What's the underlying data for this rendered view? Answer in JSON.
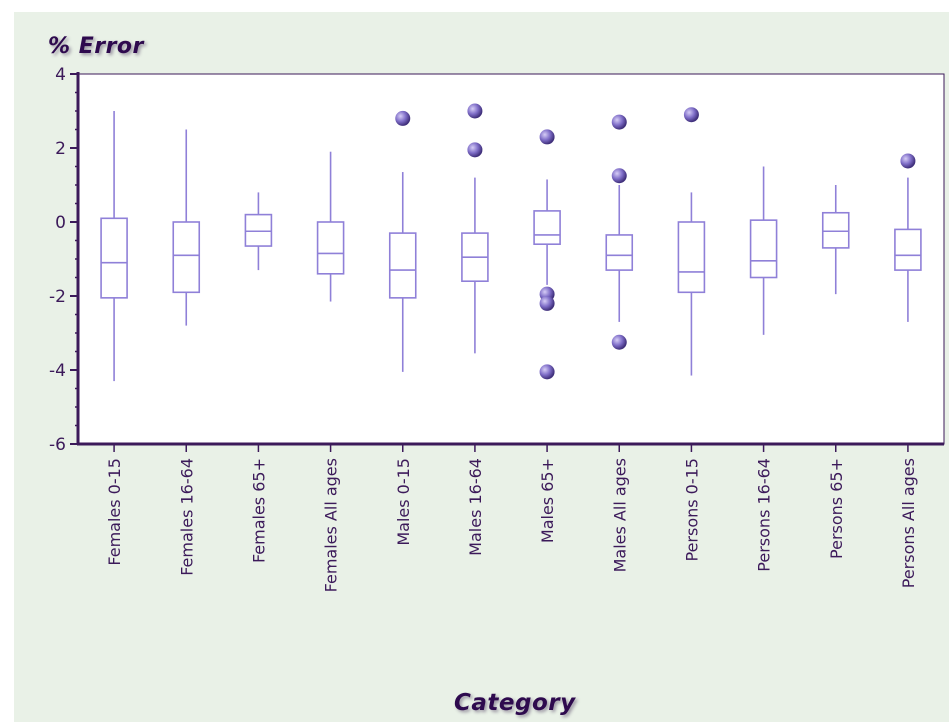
{
  "chart_data": {
    "type": "boxplot",
    "ylabel": "% Error",
    "xlabel": "Category",
    "ylim": [
      -6,
      4
    ],
    "yticks": [
      4,
      2,
      0,
      -2,
      -4,
      -6
    ],
    "categories": [
      "Females 0-15",
      "Females 16-64",
      "Females 65+",
      "Females All  ages",
      "Males 0-15",
      "Males 16-64",
      "Males 65+",
      "Males All  ages",
      "Persons 0-15",
      "Persons 16-64",
      "Persons 65+",
      "Persons All  ages"
    ],
    "boxes": [
      {
        "category": "Females 0-15",
        "whisker_low": -4.3,
        "q1": -2.05,
        "median": -1.1,
        "q3": 0.1,
        "whisker_high": 3.0,
        "outliers": []
      },
      {
        "category": "Females 16-64",
        "whisker_low": -2.8,
        "q1": -1.9,
        "median": -0.9,
        "q3": 0.0,
        "whisker_high": 2.5,
        "outliers": []
      },
      {
        "category": "Females 65+",
        "whisker_low": -1.3,
        "q1": -0.65,
        "median": -0.25,
        "q3": 0.2,
        "whisker_high": 0.8,
        "outliers": []
      },
      {
        "category": "Females All  ages",
        "whisker_low": -2.15,
        "q1": -1.4,
        "median": -0.85,
        "q3": 0.0,
        "whisker_high": 1.9,
        "outliers": []
      },
      {
        "category": "Males 0-15",
        "whisker_low": -4.05,
        "q1": -2.05,
        "median": -1.3,
        "q3": -0.3,
        "whisker_high": 1.35,
        "outliers": [
          2.8
        ]
      },
      {
        "category": "Males 16-64",
        "whisker_low": -3.55,
        "q1": -1.6,
        "median": -0.95,
        "q3": -0.3,
        "whisker_high": 1.2,
        "outliers": [
          3.0,
          1.95
        ]
      },
      {
        "category": "Males 65+",
        "whisker_low": -1.7,
        "q1": -0.6,
        "median": -0.35,
        "q3": 0.3,
        "whisker_high": 1.15,
        "outliers": [
          2.3,
          -1.95,
          -2.2,
          -4.05
        ]
      },
      {
        "category": "Males All  ages",
        "whisker_low": -2.7,
        "q1": -1.3,
        "median": -0.9,
        "q3": -0.35,
        "whisker_high": 1.0,
        "outliers": [
          2.7,
          1.25,
          -3.25
        ]
      },
      {
        "category": "Persons 0-15",
        "whisker_low": -4.15,
        "q1": -1.9,
        "median": -1.35,
        "q3": 0.0,
        "whisker_high": 0.8,
        "outliers": [
          2.9
        ]
      },
      {
        "category": "Persons 16-64",
        "whisker_low": -3.05,
        "q1": -1.5,
        "median": -1.05,
        "q3": 0.05,
        "whisker_high": 1.5,
        "outliers": []
      },
      {
        "category": "Persons 65+",
        "whisker_low": -1.95,
        "q1": -0.7,
        "median": -0.25,
        "q3": 0.25,
        "whisker_high": 1.0,
        "outliers": []
      },
      {
        "category": "Persons All  ages",
        "whisker_low": -2.7,
        "q1": -1.3,
        "median": -0.9,
        "q3": -0.2,
        "whisker_high": 1.2,
        "outliers": [
          1.65
        ]
      }
    ],
    "colors": {
      "box": "#8f80d8",
      "outlier": "#7f6ec8",
      "axis": "#3c1a5a",
      "panel": "#e9f1e7",
      "plot_bg": "#ffffff",
      "text": "#3c1a5a"
    }
  }
}
